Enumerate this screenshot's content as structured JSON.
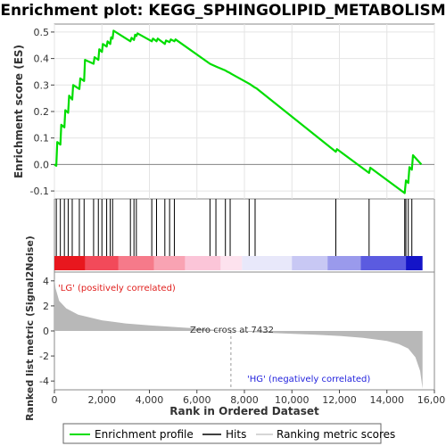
{
  "chart_data": {
    "type": "line",
    "title": "Enrichment plot: KEGG_SPHINGOLIPID_METABOLISM",
    "top_panel": {
      "ylabel": "Enrichment score (ES)",
      "ylim": [
        -0.13,
        0.53
      ],
      "yticks": [
        -0.1,
        0.0,
        0.1,
        0.2,
        0.3,
        0.4,
        0.5
      ],
      "ytick_labels": [
        "-0.1",
        "0.0",
        "0.1",
        "0.2",
        "0.3",
        "0.4",
        "0.5"
      ],
      "series": [
        {
          "name": "Enrichment profile",
          "color": "#00dd00",
          "x": [
            0,
            80,
            120,
            250,
            290,
            420,
            460,
            580,
            620,
            750,
            790,
            1050,
            1090,
            1250,
            1290,
            1650,
            1690,
            1850,
            1890,
            2000,
            2040,
            2200,
            2240,
            2350,
            2390,
            2450,
            2490,
            3200,
            3250,
            3350,
            3400,
            3450,
            3500,
            4100,
            4150,
            4300,
            4350,
            4650,
            4700,
            4850,
            4900,
            5050,
            5100,
            6550,
            6600,
            6800,
            6850,
            7200,
            7250,
            7400,
            7450,
            8200,
            8250,
            8450,
            8500,
            11850,
            11900,
            13250,
            13300,
            14750,
            14800,
            14900,
            14950,
            15050,
            15100,
            15450
          ],
          "y": [
            0.0,
            -0.005,
            0.085,
            0.075,
            0.15,
            0.14,
            0.205,
            0.195,
            0.26,
            0.245,
            0.3,
            0.285,
            0.325,
            0.315,
            0.395,
            0.38,
            0.405,
            0.395,
            0.435,
            0.425,
            0.455,
            0.445,
            0.465,
            0.455,
            0.48,
            0.475,
            0.505,
            0.465,
            0.478,
            0.47,
            0.49,
            0.485,
            0.495,
            0.465,
            0.475,
            0.465,
            0.475,
            0.455,
            0.468,
            0.462,
            0.472,
            0.465,
            0.472,
            0.38,
            0.378,
            0.37,
            0.368,
            0.355,
            0.352,
            0.345,
            0.342,
            0.305,
            0.302,
            0.29,
            0.288,
            0.048,
            0.058,
            -0.032,
            -0.012,
            -0.108,
            -0.06,
            -0.07,
            -0.01,
            -0.02,
            0.035,
            0.0
          ]
        }
      ]
    },
    "hits": [
      80,
      250,
      420,
      580,
      750,
      1050,
      1250,
      1650,
      1850,
      2000,
      2200,
      2350,
      2450,
      3200,
      3350,
      3450,
      4100,
      4300,
      4650,
      4850,
      5050,
      6550,
      6800,
      7200,
      7400,
      8200,
      8450,
      11850,
      13250,
      14750,
      14800,
      14900,
      15050
    ],
    "bottom_panel": {
      "ylabel": "Ranked list metric (Signal2Noise)",
      "ylim": [
        -4.7,
        4.7
      ],
      "yticks": [
        -4,
        -2,
        0,
        2,
        4
      ],
      "ytick_labels": [
        "-4",
        "-2",
        "0",
        "2",
        "4"
      ],
      "metric_profile": {
        "name": "Ranking metric scores",
        "x": [
          0,
          50,
          200,
          500,
          1000,
          2000,
          3000,
          4000,
          5000,
          6000,
          7432,
          9000,
          11000,
          12000,
          13000,
          14000,
          14500,
          14900,
          15200,
          15400,
          15500
        ],
        "y": [
          4.2,
          3.4,
          2.4,
          1.8,
          1.3,
          0.85,
          0.6,
          0.45,
          0.32,
          0.2,
          0.0,
          -0.15,
          -0.3,
          -0.4,
          -0.55,
          -0.8,
          -1.05,
          -1.4,
          -2.1,
          -3.2,
          -4.6
        ]
      },
      "zero_cross": 7432
    },
    "xlabel": "Rank in Ordered Dataset",
    "xlim": [
      0,
      16000
    ],
    "xticks": [
      0,
      2000,
      4000,
      6000,
      8000,
      10000,
      12000,
      14000,
      16000
    ],
    "xtick_labels": [
      "0",
      "2,000",
      "4,000",
      "6,000",
      "8,000",
      "10,000",
      "12,000",
      "14,000",
      "16,000"
    ],
    "n_genes": 15500,
    "annotations": {
      "positive": "'LG' (positively correlated)",
      "negative": "'HG' (negatively correlated)",
      "zero_cross": "Zero cross at 7432"
    },
    "legend": {
      "placement": "bottom",
      "entries": [
        "Enrichment profile",
        "Hits",
        "Ranking metric scores"
      ]
    },
    "colors": {
      "profile": "#00dd00",
      "hits": "#000000",
      "metric": "#b8b8b8",
      "positive_text": "#e0201e",
      "negative_text": "#2222dd"
    },
    "heatmap_bands": [
      {
        "from": 0,
        "to": 1300,
        "color": "#e8171e"
      },
      {
        "from": 1300,
        "to": 2700,
        "color": "#f24a5a"
      },
      {
        "from": 2700,
        "to": 4200,
        "color": "#f67a8a"
      },
      {
        "from": 4200,
        "to": 5500,
        "color": "#f9a3b3"
      },
      {
        "from": 5500,
        "to": 7000,
        "color": "#fbc5d8"
      },
      {
        "from": 7000,
        "to": 7900,
        "color": "#fde2ee"
      },
      {
        "from": 7900,
        "to": 10000,
        "color": "#e8e8fa"
      },
      {
        "from": 10000,
        "to": 11500,
        "color": "#c8c8f4"
      },
      {
        "from": 11500,
        "to": 12900,
        "color": "#9a9aec"
      },
      {
        "from": 12900,
        "to": 14800,
        "color": "#5b5be0"
      },
      {
        "from": 14800,
        "to": 15500,
        "color": "#1414c8"
      }
    ]
  }
}
